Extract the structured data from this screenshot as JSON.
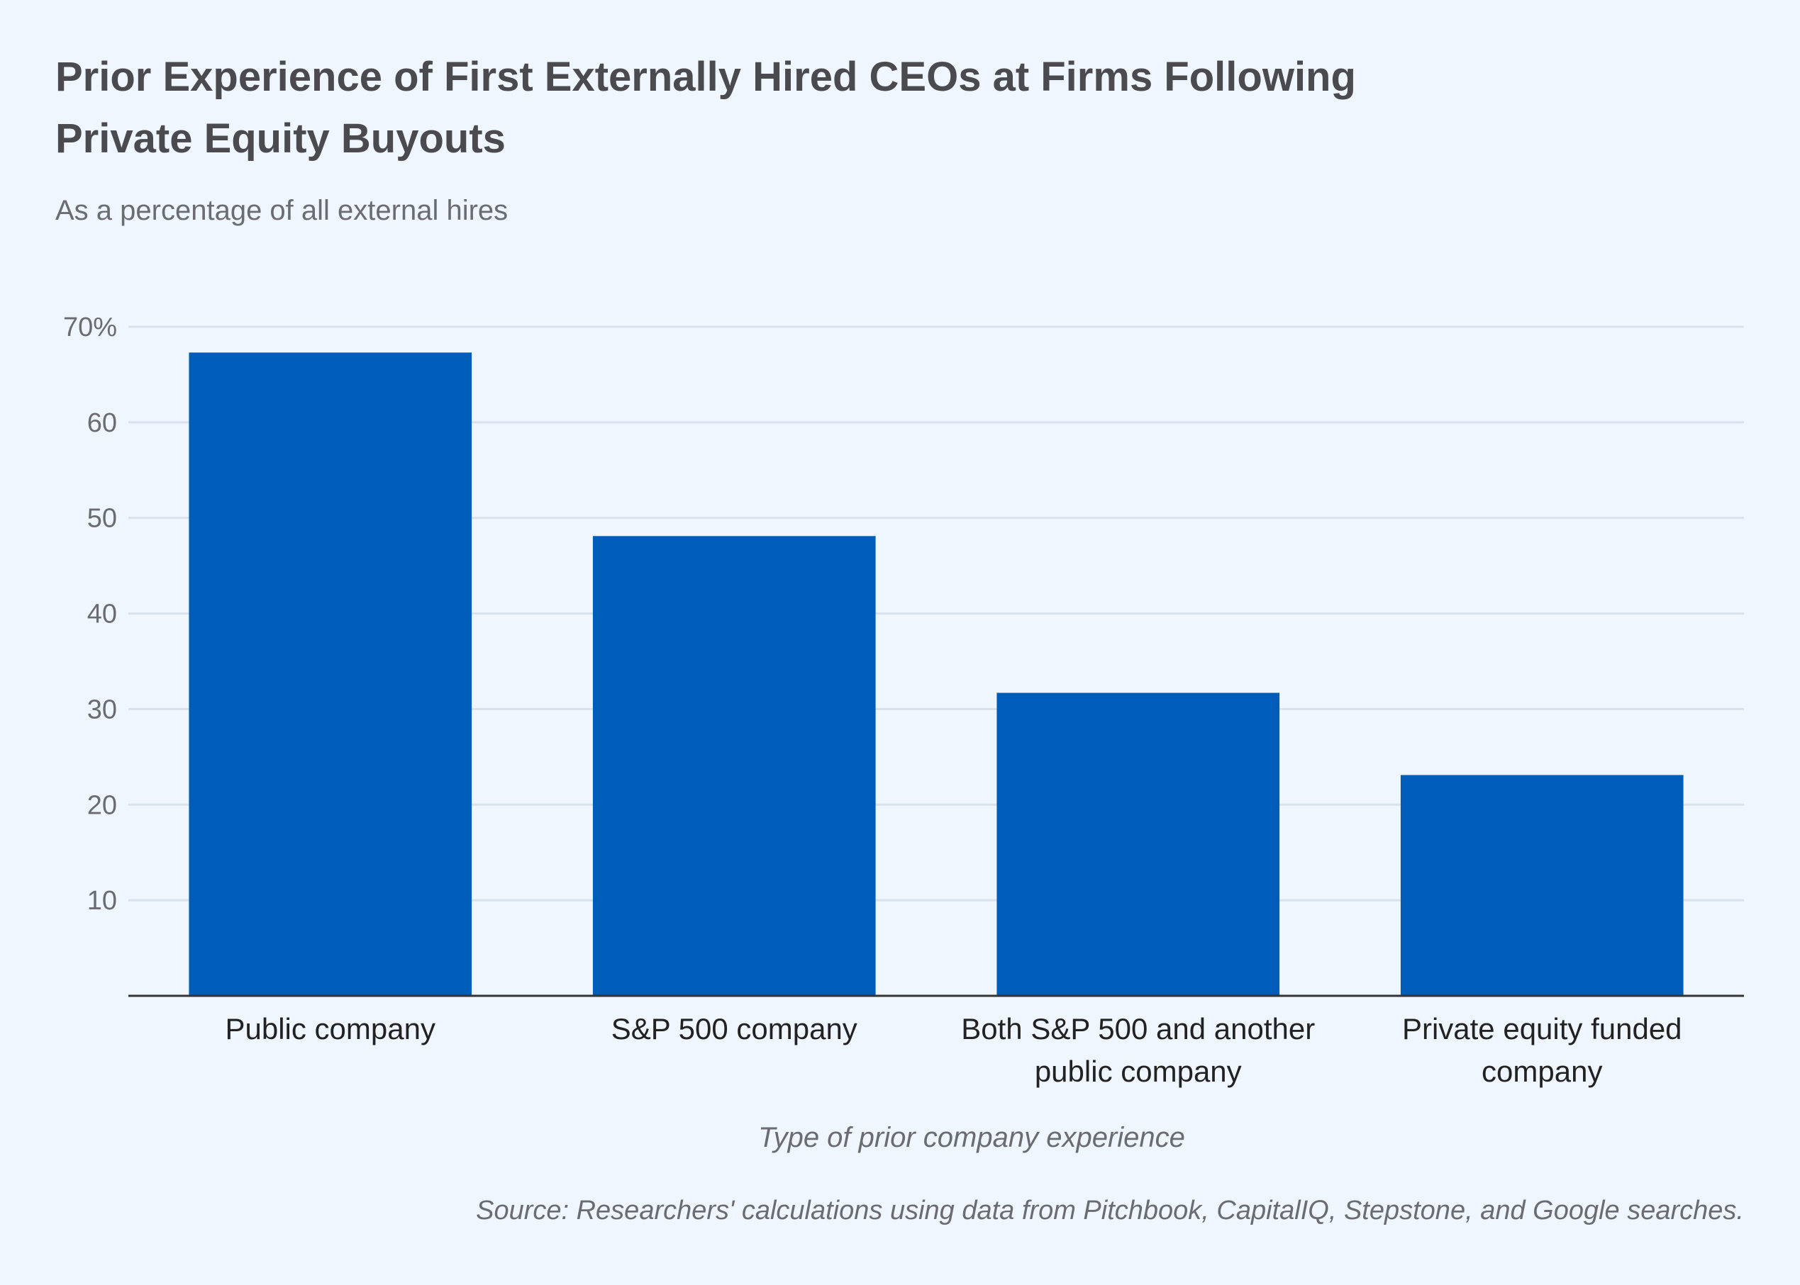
{
  "chart_data": {
    "type": "bar",
    "title_lines": [
      "Prior Experience of First Externally Hired CEOs at Firms Following",
      "Private Equity Buyouts"
    ],
    "subtitle": "As a percentage of all external hires",
    "categories": [
      [
        "Public company"
      ],
      [
        "S&P 500 company"
      ],
      [
        "Both S&P 500 and another",
        "public company"
      ],
      [
        "Private equity funded",
        "company"
      ]
    ],
    "values": [
      67.3,
      48.1,
      31.7,
      23.1
    ],
    "xlabel": "Type of prior company experience",
    "ylabel": "",
    "ylim": [
      0,
      70
    ],
    "yticks": [
      10,
      20,
      30,
      40,
      50,
      60,
      70
    ],
    "ytick_labels": [
      "10",
      "20",
      "30",
      "40",
      "50",
      "60",
      "70%"
    ],
    "grid": true,
    "source": "Source: Researchers' calculations using data from Pitchbook, CapitalIQ, Stepstone, and Google searches.",
    "colors": {
      "bar": "#005cb9",
      "grid": "#d8e1ec",
      "axis": "#333333",
      "background": "#eff6ff"
    }
  }
}
